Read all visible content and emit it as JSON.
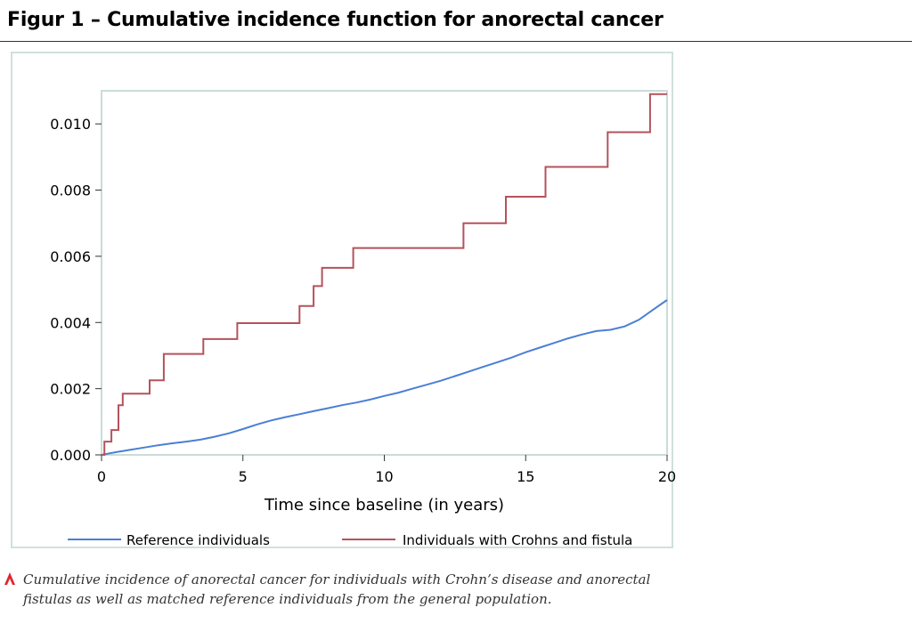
{
  "figure": {
    "title": "Figur 1 – Cumulative incidence function for anorectal cancer",
    "caption": "Cumulative incidence of anorectal cancer for individuals with Crohn’s disease and anorectal fistulas as well as matched reference individuals from the general population."
  },
  "colors": {
    "reference": "#4a7fd6",
    "crohns": "#b5525c",
    "frame": "#cfe0de",
    "marker": "#e0262e"
  },
  "chart_data": {
    "type": "line",
    "xlabel": "Time since baseline (in years)",
    "ylabel": "",
    "xlim": [
      0,
      20
    ],
    "ylim": [
      0,
      0.011
    ],
    "xticks": [
      0,
      5,
      10,
      15,
      20
    ],
    "yticks": [
      0.0,
      0.002,
      0.004,
      0.006,
      0.008,
      0.01
    ],
    "xtick_labels": [
      "0",
      "5",
      "10",
      "15",
      "20"
    ],
    "ytick_labels": [
      "0.000",
      "0.002",
      "0.004",
      "0.006",
      "0.008",
      "0.010"
    ],
    "legend_position": "bottom",
    "grid": false,
    "series": [
      {
        "name": "Reference individuals",
        "color": "#4a7fd6",
        "step": false,
        "x": [
          0,
          0.5,
          1,
          1.5,
          2,
          2.5,
          3,
          3.5,
          4,
          4.5,
          5,
          5.5,
          6,
          6.5,
          7,
          7.5,
          8,
          8.5,
          9,
          9.5,
          10,
          10.5,
          11,
          11.5,
          12,
          12.5,
          13,
          13.5,
          14,
          14.5,
          15,
          15.5,
          16,
          16.5,
          17,
          17.5,
          18,
          18.5,
          19,
          19.5,
          20
        ],
        "y": [
          0.0,
          8e-05,
          0.00015,
          0.00022,
          0.00029,
          0.00035,
          0.0004,
          0.00046,
          0.00055,
          0.00065,
          0.00078,
          0.00092,
          0.00104,
          0.00114,
          0.00123,
          0.00132,
          0.00141,
          0.0015,
          0.00158,
          0.00167,
          0.00178,
          0.00188,
          0.002,
          0.00212,
          0.00224,
          0.00238,
          0.00252,
          0.00266,
          0.0028,
          0.00294,
          0.0031,
          0.00324,
          0.00338,
          0.00352,
          0.00364,
          0.00374,
          0.00378,
          0.00388,
          0.00408,
          0.00438,
          0.00468
        ]
      },
      {
        "name": "Individuals with Crohns and fistula",
        "color": "#b5525c",
        "step": true,
        "x": [
          0,
          0.1,
          0.35,
          0.6,
          0.75,
          1.7,
          2.2,
          3.6,
          4.8,
          7.0,
          7.5,
          7.8,
          8.9,
          12.8,
          14.3,
          15.7,
          17.9,
          19.4,
          20
        ],
        "y": [
          0.0,
          0.0004,
          0.00075,
          0.0015,
          0.00185,
          0.00225,
          0.00305,
          0.0035,
          0.00398,
          0.0045,
          0.0051,
          0.00565,
          0.00625,
          0.007,
          0.0078,
          0.0087,
          0.00975,
          0.0109,
          0.0109
        ]
      }
    ]
  }
}
